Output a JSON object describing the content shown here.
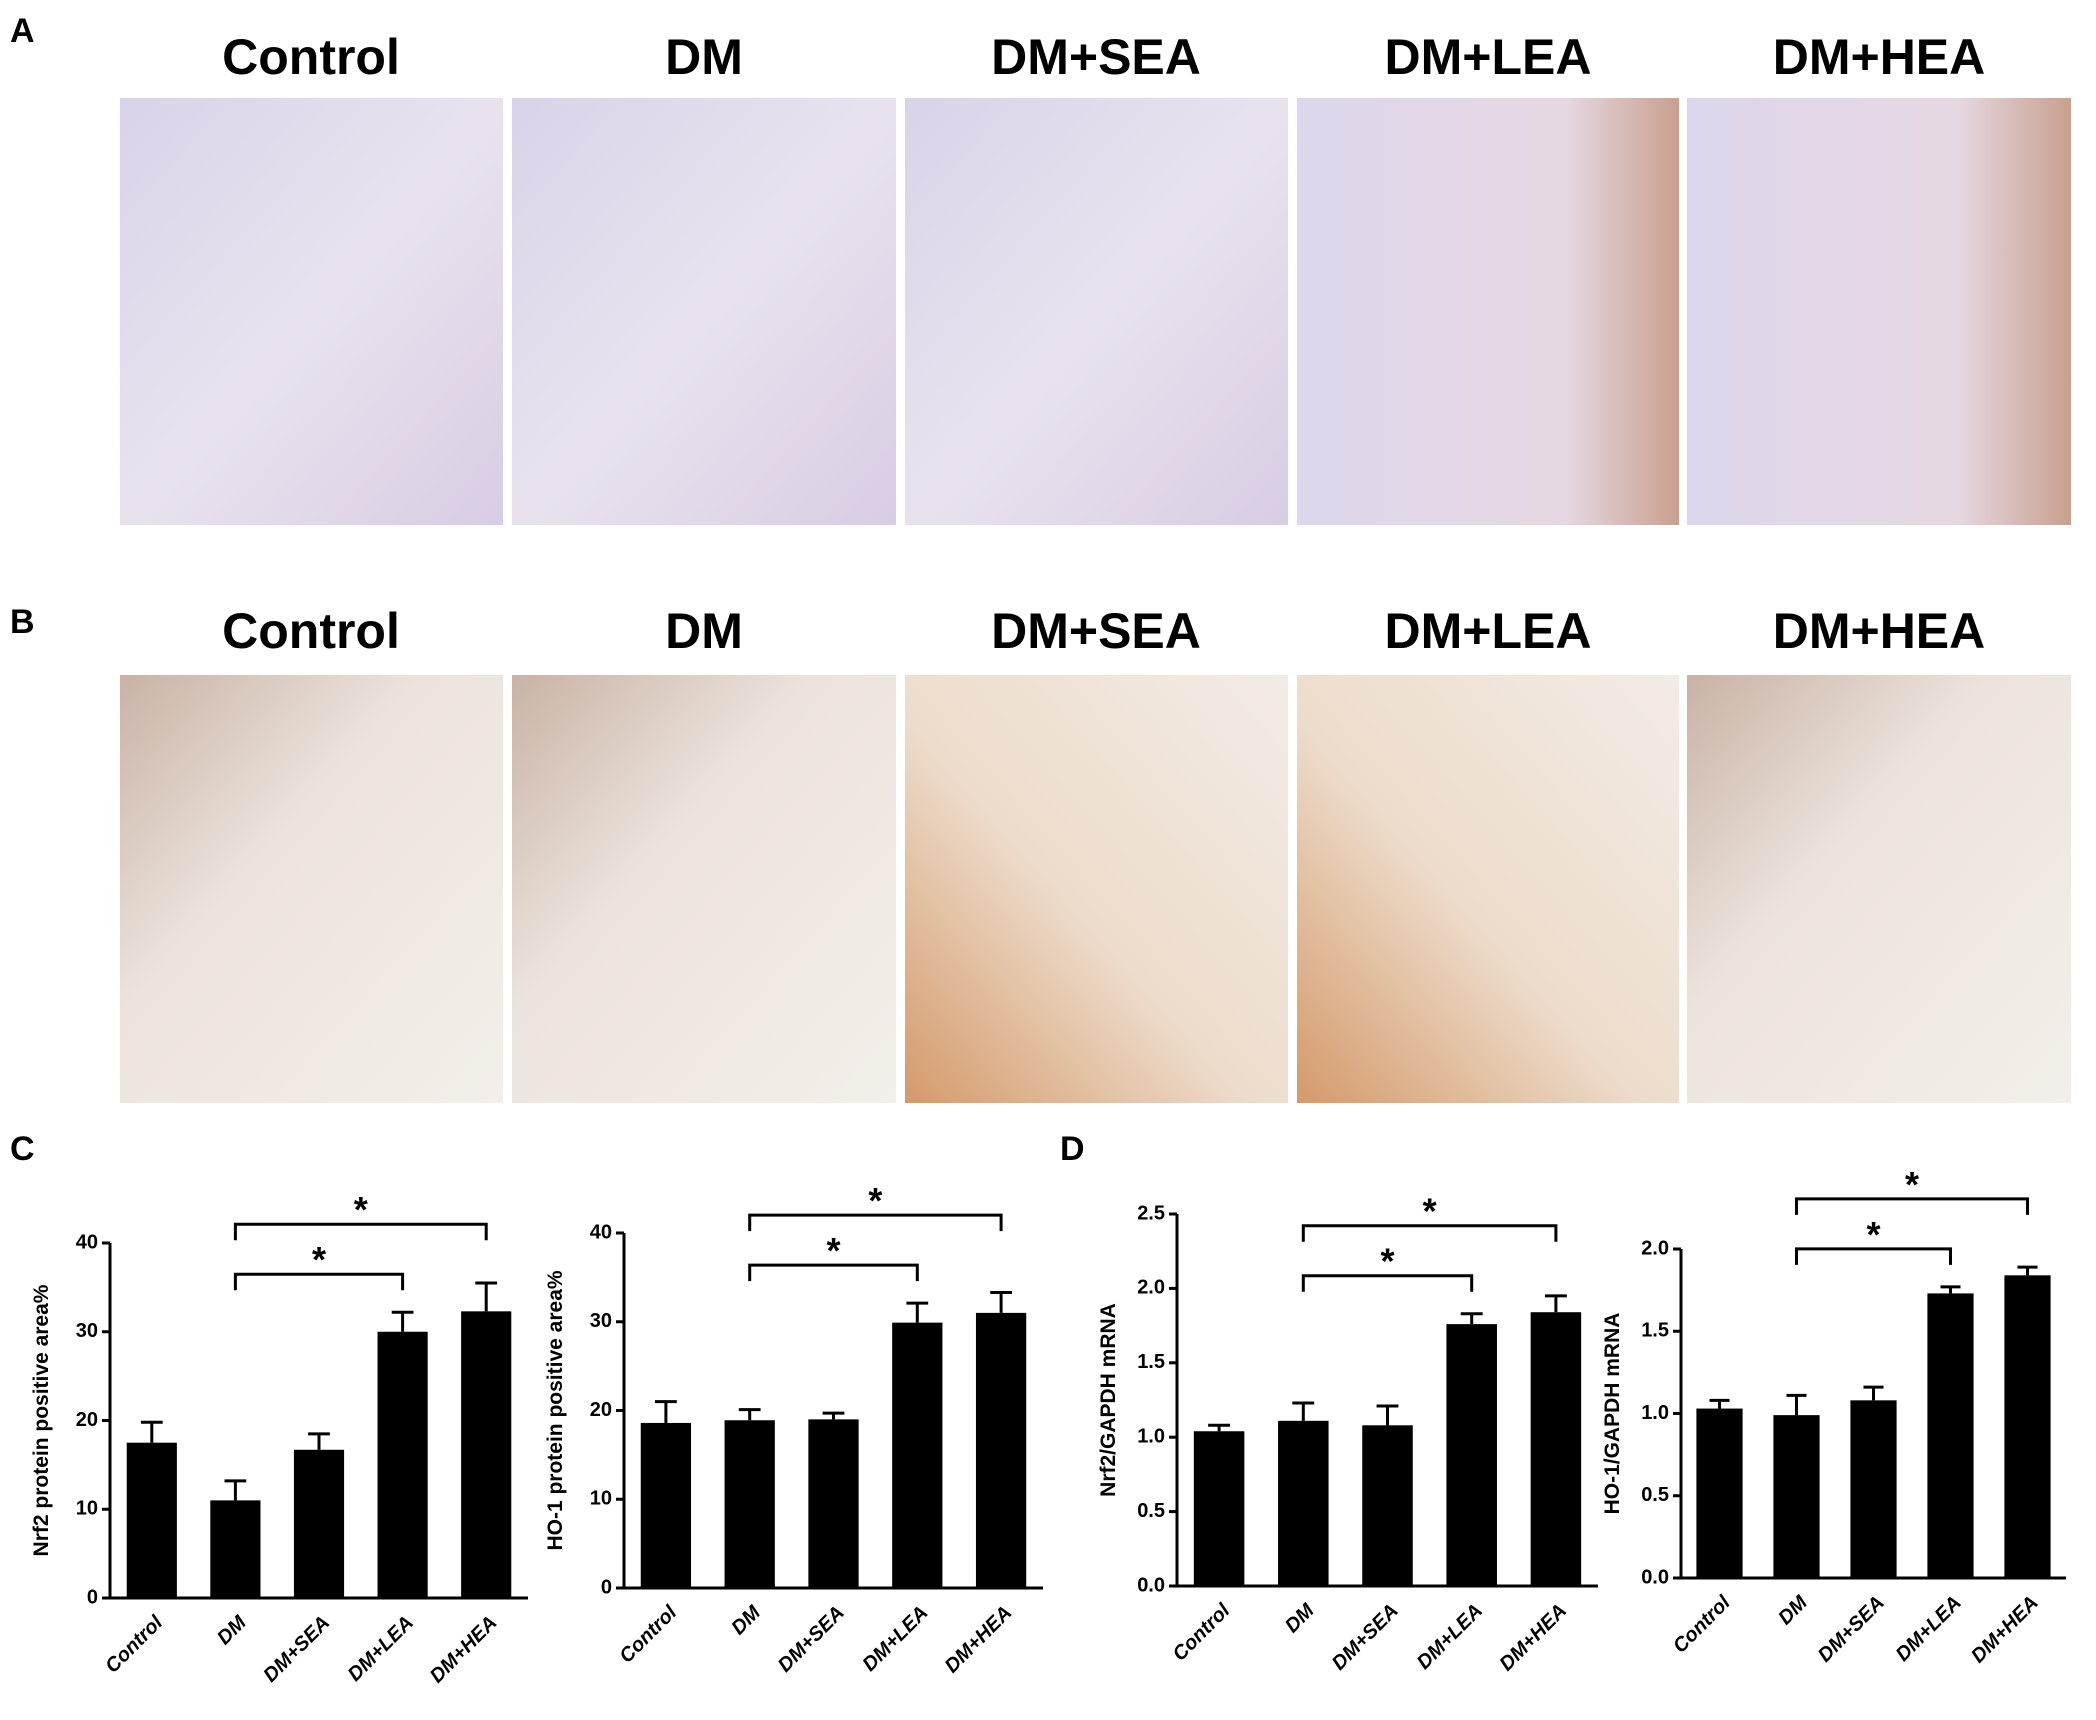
{
  "panel_labels": [
    "A",
    "B",
    "C",
    "D"
  ],
  "panel_a": {
    "titles": [
      "Control",
      "DM",
      "DM+SEA",
      "DM+LEA",
      "DM+HEA"
    ]
  },
  "panel_b": {
    "titles": [
      "Control",
      "DM",
      "DM+SEA",
      "DM+LEA",
      "DM+HEA"
    ]
  },
  "chart_data": [
    {
      "type": "bar",
      "ylabel": "Nrf2 protein positive area%",
      "categories": [
        "Control",
        "DM",
        "DM+SEA",
        "DM+LEA",
        "DM+HEA"
      ],
      "values": [
        17.5,
        11,
        16.7,
        30,
        32.3
      ],
      "errors": [
        2.3,
        2.2,
        1.8,
        2.2,
        3.2
      ],
      "color": "#000000",
      "ylim": [
        0,
        40
      ],
      "yticks": [
        0,
        10,
        20,
        30,
        40
      ],
      "comparisons": [
        {
          "label": "*",
          "from": 1,
          "to": 3
        },
        {
          "label": "*",
          "from": 1,
          "to": 4
        }
      ]
    },
    {
      "type": "bar",
      "ylabel": "HO-1 protein positive area%",
      "categories": [
        "Control",
        "DM",
        "DM+SEA",
        "DM+LEA",
        "DM+HEA"
      ],
      "values": [
        18.6,
        18.9,
        19,
        29.9,
        31
      ],
      "errors": [
        2.4,
        1.2,
        0.7,
        2.2,
        2.3
      ],
      "color": "#000000",
      "ylim": [
        0,
        40
      ],
      "yticks": [
        0,
        10,
        20,
        30,
        40
      ],
      "comparisons": [
        {
          "label": "*",
          "from": 1,
          "to": 3
        },
        {
          "label": "*",
          "from": 1,
          "to": 4
        }
      ]
    },
    {
      "type": "bar",
      "ylabel": "Nrf2/GAPDH mRNA",
      "categories": [
        "Control",
        "DM",
        "DM+SEA",
        "DM+LEA",
        "DM+HEA"
      ],
      "values": [
        1.04,
        1.11,
        1.08,
        1.76,
        1.84
      ],
      "errors": [
        0.04,
        0.12,
        0.13,
        0.07,
        0.11
      ],
      "color": "#000000",
      "ylim": [
        0,
        2.5
      ],
      "yticks": [
        {
          "value": 0,
          "label": "0.0"
        },
        0.5,
        {
          "value": 1,
          "label": "1.0"
        },
        1.5,
        {
          "value": 2,
          "label": "2.0"
        },
        2.5
      ],
      "comparisons": [
        {
          "label": "*",
          "from": 1,
          "to": 3
        },
        {
          "label": "*",
          "from": 1,
          "to": 4
        }
      ]
    },
    {
      "type": "bar",
      "ylabel": "HO-1/GAPDH mRNA",
      "categories": [
        "Control",
        "DM",
        "DM+SEA",
        "DM+LEA",
        "DM+HEA"
      ],
      "values": [
        1.03,
        0.99,
        1.08,
        1.73,
        1.84
      ],
      "errors": [
        0.05,
        0.12,
        0.08,
        0.04,
        0.05
      ],
      "color": "#000000",
      "ylim": [
        0,
        2
      ],
      "yticks": [
        {
          "value": 0,
          "label": "0.0"
        },
        0.5,
        {
          "value": 1,
          "label": "1.0"
        },
        1.5,
        {
          "value": 2,
          "label": "2.0"
        }
      ],
      "comparisons": [
        {
          "label": "*",
          "from": 1,
          "to": 3
        },
        {
          "label": "*",
          "from": 1,
          "to": 4
        }
      ]
    }
  ]
}
